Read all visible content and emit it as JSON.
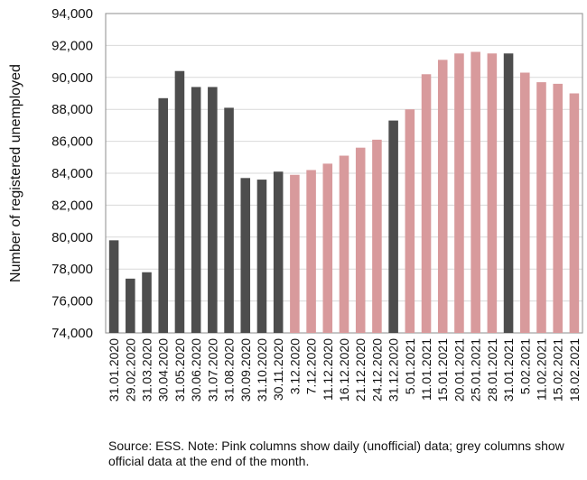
{
  "chart_data": {
    "type": "bar",
    "title": "",
    "xlabel": "",
    "ylabel": "Number of registered unemployed",
    "ylim": [
      74000,
      94000
    ],
    "ytick_step": 2000,
    "grid": true,
    "colors": {
      "official": "#4d4d4d",
      "daily": "#d89a9c",
      "grid": "#d9d9d9",
      "axis": "#8c8c8c"
    },
    "categories": [
      "31.01.2020",
      "29.02.2020",
      "31.03.2020",
      "30.04.2020",
      "31.05.2020",
      "30.06.2020",
      "31.07.2020",
      "31.08.2020",
      "30.09.2020",
      "31.10.2020",
      "30.11.2020",
      "3.12.2020",
      "7.12.2020",
      "11.12.2020",
      "16.12.2020",
      "21.12.2020",
      "24.12.2020",
      "31.12.2020",
      "5.01.2021",
      "11.01.2021",
      "15.01.2021",
      "20.01.2021",
      "25.01.2021",
      "28.01.2021",
      "31.01.2021",
      "5.02.2021",
      "11.02.2021",
      "15.02.2021",
      "18.02.2021"
    ],
    "values": [
      79800,
      77400,
      77800,
      88700,
      90400,
      89400,
      89400,
      88100,
      83700,
      83600,
      84100,
      83900,
      84200,
      84600,
      85100,
      85600,
      86100,
      87300,
      88000,
      90200,
      91100,
      91500,
      91600,
      91500,
      91500,
      90300,
      89700,
      89600,
      89000
    ],
    "kinds": [
      "official",
      "official",
      "official",
      "official",
      "official",
      "official",
      "official",
      "official",
      "official",
      "official",
      "official",
      "daily",
      "daily",
      "daily",
      "daily",
      "daily",
      "daily",
      "official",
      "daily",
      "daily",
      "daily",
      "daily",
      "daily",
      "daily",
      "official",
      "daily",
      "daily",
      "daily",
      "daily"
    ]
  },
  "note": "Source: ESS. Note: Pink columns show daily (unofficial) data; grey columns show official data at the end of the month."
}
